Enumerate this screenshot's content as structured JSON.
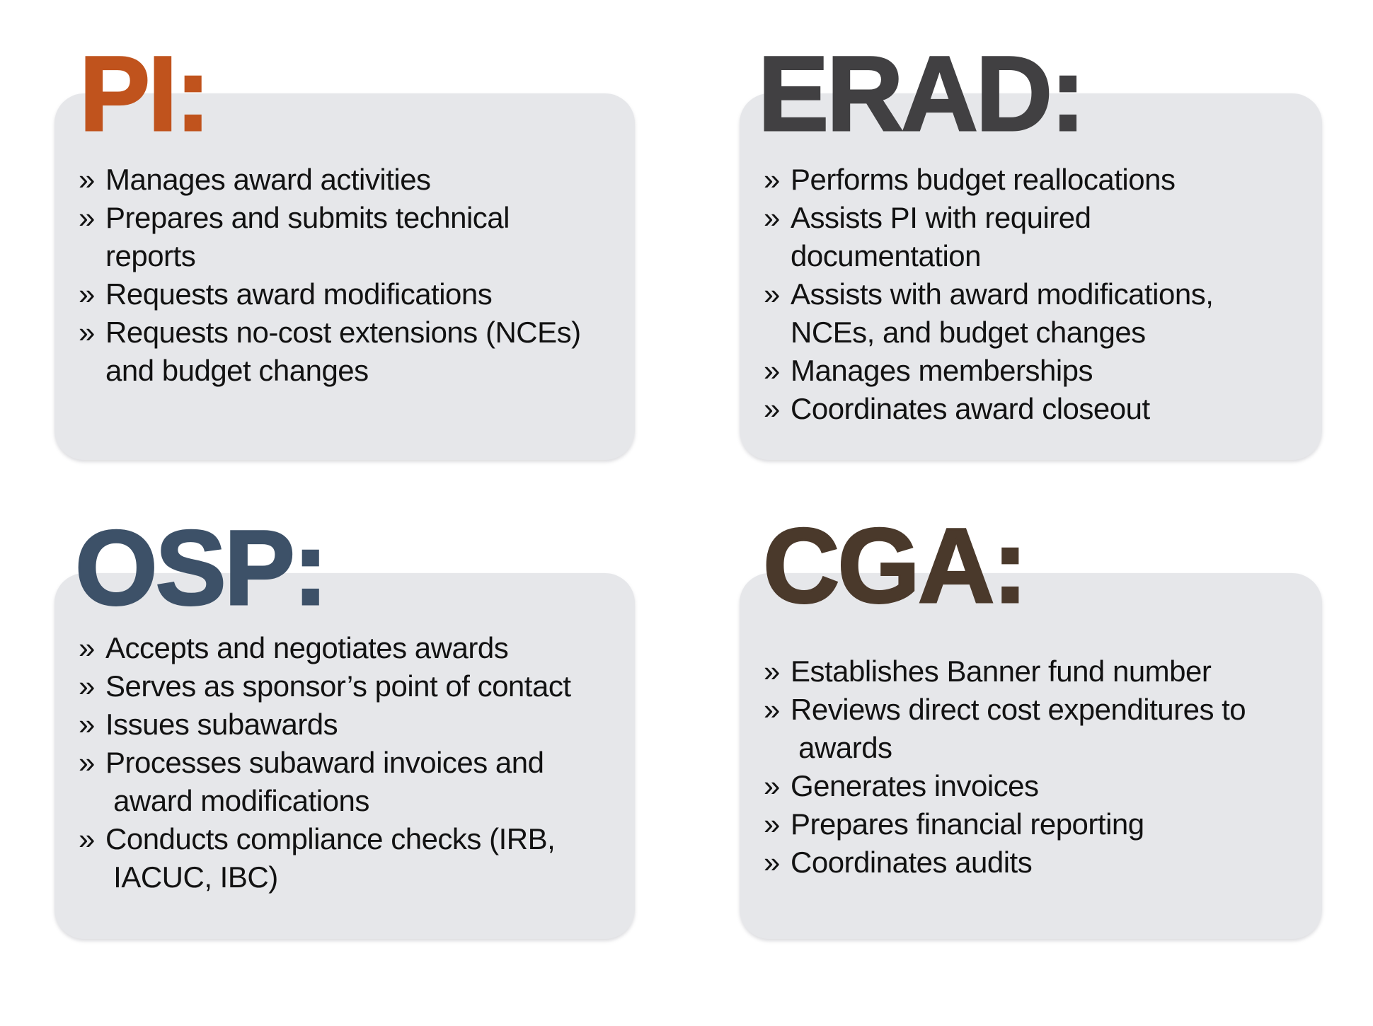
{
  "style": {
    "page_background": "#ffffff",
    "card_background": "#e6e7ea",
    "body_text_color": "#121212",
    "bullet_char": "»"
  },
  "cards": [
    {
      "id": "pi",
      "title": "PI:",
      "title_color": "#c0531d",
      "items": [
        {
          "lines": [
            "Manages award activities"
          ]
        },
        {
          "lines": [
            "Prepares and submits technical",
            "reports"
          ]
        },
        {
          "lines": [
            "Requests award modifications"
          ]
        },
        {
          "lines": [
            "Requests no-cost extensions (NCEs)",
            "and budget changes"
          ]
        }
      ]
    },
    {
      "id": "erad",
      "title": "ERAD:",
      "title_color": "#414042",
      "items": [
        {
          "lines": [
            "Performs budget reallocations"
          ]
        },
        {
          "lines": [
            "Assists PI with required",
            "documentation"
          ]
        },
        {
          "lines": [
            "Assists with award modifications,",
            "NCEs, and budget changes"
          ]
        },
        {
          "lines": [
            "Manages memberships"
          ]
        },
        {
          "lines": [
            "Coordinates award closeout"
          ]
        }
      ]
    },
    {
      "id": "osp",
      "title": "OSP:",
      "title_color": "#3d5168",
      "items": [
        {
          "lines": [
            "Accepts and negotiates awards"
          ]
        },
        {
          "lines": [
            "Serves as sponsor’s point of contact"
          ]
        },
        {
          "lines": [
            "Issues subawards"
          ]
        },
        {
          "lines": [
            "Processes subaward invoices and",
            " award modifications"
          ]
        },
        {
          "lines": [
            "Conducts compliance checks (IRB,",
            " IACUC, IBC)"
          ]
        }
      ]
    },
    {
      "id": "cga",
      "title": "CGA:",
      "title_color": "#4a392b",
      "items": [
        {
          "lines": [
            "Establishes Banner fund number"
          ]
        },
        {
          "lines": [
            "Reviews direct cost expenditures to",
            " awards"
          ]
        },
        {
          "lines": [
            "Generates invoices"
          ]
        },
        {
          "lines": [
            "Prepares financial reporting"
          ]
        },
        {
          "lines": [
            "Coordinates audits"
          ]
        }
      ]
    }
  ]
}
